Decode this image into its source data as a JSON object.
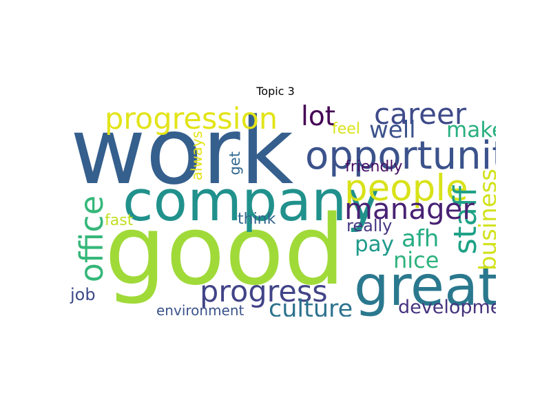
{
  "chart_data": {
    "type": "wordcloud",
    "title": "Topic 3",
    "words": [
      {
        "text": "good",
        "weight": 100,
        "color": "#a0da39",
        "vertical": false
      },
      {
        "text": "work",
        "weight": 96,
        "color": "#355f8d",
        "vertical": false
      },
      {
        "text": "company",
        "weight": 58,
        "color": "#21918c",
        "vertical": false
      },
      {
        "text": "great",
        "weight": 57,
        "color": "#2a788e",
        "vertical": false
      },
      {
        "text": "opportunity",
        "weight": 40,
        "color": "#3b528b",
        "vertical": false
      },
      {
        "text": "people",
        "weight": 38,
        "color": "#d8e219",
        "vertical": false
      },
      {
        "text": "office",
        "weight": 33,
        "color": "#35b779",
        "vertical": true
      },
      {
        "text": "staff",
        "weight": 32,
        "color": "#1fa187",
        "vertical": true
      },
      {
        "text": "progress",
        "weight": 31,
        "color": "#414487",
        "vertical": false
      },
      {
        "text": "progression",
        "weight": 31,
        "color": "#e2e418",
        "vertical": false
      },
      {
        "text": "career",
        "weight": 30,
        "color": "#3e4a89",
        "vertical": false
      },
      {
        "text": "manager",
        "weight": 30,
        "color": "#482173",
        "vertical": false
      },
      {
        "text": "lot",
        "weight": 28,
        "color": "#440154",
        "vertical": false
      },
      {
        "text": "culture",
        "weight": 25,
        "color": "#2c728e",
        "vertical": false
      },
      {
        "text": "business",
        "weight": 24,
        "color": "#d2e21b",
        "vertical": true
      },
      {
        "text": "afh",
        "weight": 24,
        "color": "#25ac82",
        "vertical": false
      },
      {
        "text": "well",
        "weight": 24,
        "color": "#3b528b",
        "vertical": false
      },
      {
        "text": "nice",
        "weight": 23,
        "color": "#2db27d",
        "vertical": false
      },
      {
        "text": "make",
        "weight": 22,
        "color": "#29af7f",
        "vertical": false
      },
      {
        "text": "pay",
        "weight": 22,
        "color": "#1f9a8a",
        "vertical": false
      },
      {
        "text": "development",
        "weight": 19,
        "color": "#46337e",
        "vertical": false
      },
      {
        "text": "job",
        "weight": 17,
        "color": "#3e4989",
        "vertical": false
      },
      {
        "text": "really",
        "weight": 17,
        "color": "#453781",
        "vertical": false
      },
      {
        "text": "think",
        "weight": 16,
        "color": "#33638d",
        "vertical": false
      },
      {
        "text": "fast",
        "weight": 16,
        "color": "#c2df23",
        "vertical": false
      },
      {
        "text": "friendly",
        "weight": 16,
        "color": "#471063",
        "vertical": false
      },
      {
        "text": "feel",
        "weight": 16,
        "color": "#dae319",
        "vertical": false
      },
      {
        "text": "get",
        "weight": 15,
        "color": "#31688e",
        "vertical": true
      },
      {
        "text": "always",
        "weight": 15,
        "color": "#e5e419",
        "vertical": true
      },
      {
        "text": "environment",
        "weight": 14,
        "color": "#3b528b",
        "vertical": false
      }
    ]
  }
}
